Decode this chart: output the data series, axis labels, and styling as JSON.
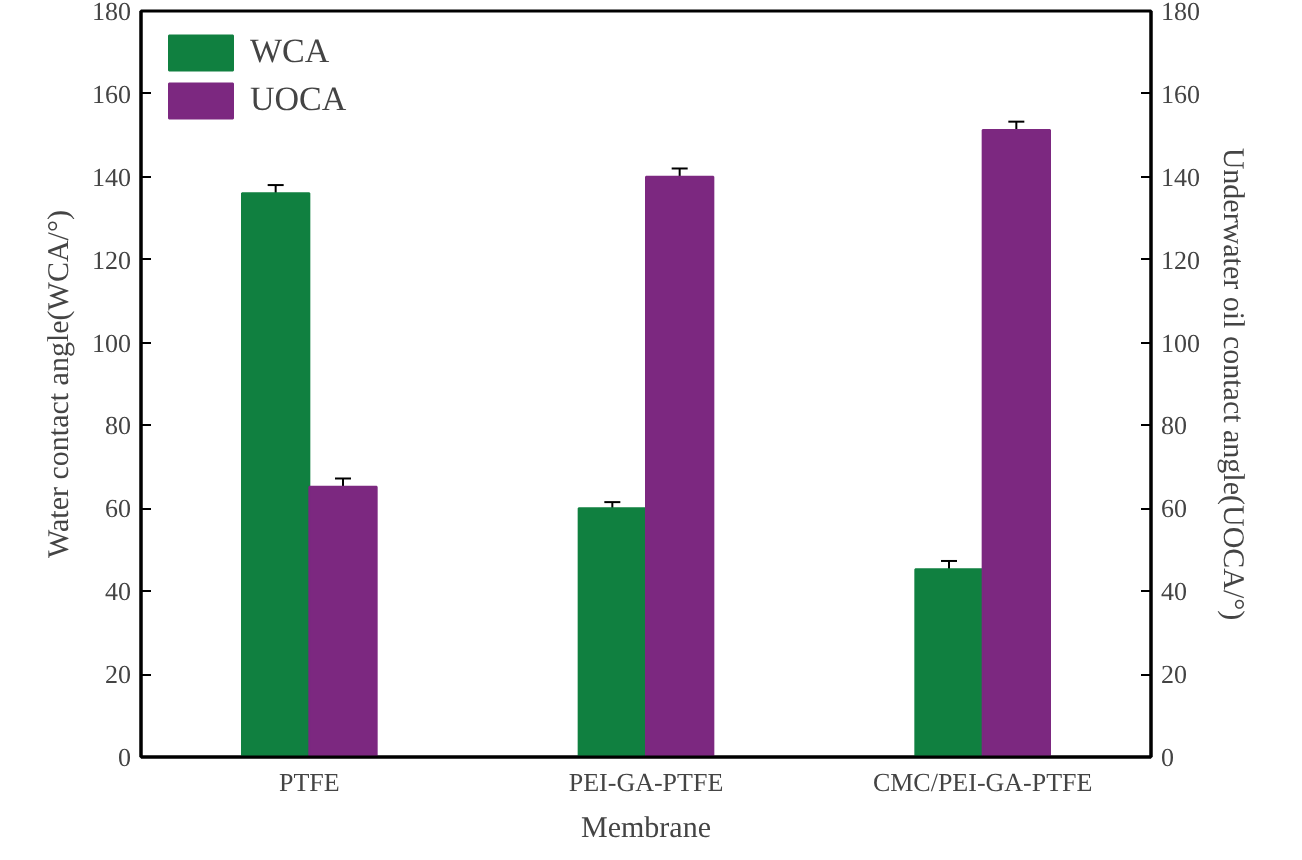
{
  "chart_data": {
    "type": "bar",
    "xlabel": "Membrane",
    "ylabel": "Water contact angle(WCA/°)",
    "y2label": "Underwater oil contact angle(UOCA/°)",
    "categories": [
      "PTFE",
      "PEI-GA-PTFE",
      "CMC/PEI-GA-PTFE"
    ],
    "series": [
      {
        "name": "WCA",
        "color": "#108040",
        "values": [
          136,
          60,
          45.3
        ],
        "errors": [
          2,
          1.5,
          2
        ]
      },
      {
        "name": "UOCA",
        "color": "#7c2880",
        "values": [
          65.2,
          140,
          151.3
        ],
        "errors": [
          2,
          2,
          2
        ]
      }
    ],
    "ylim": [
      0,
      180
    ],
    "yticks": [
      0,
      20,
      40,
      60,
      80,
      100,
      120,
      140,
      160,
      180
    ],
    "y2lim": [
      0,
      180
    ],
    "y2ticks": [
      0,
      20,
      40,
      60,
      80,
      100,
      120,
      140,
      160,
      180
    ],
    "legend": "top left",
    "grid": false
  }
}
